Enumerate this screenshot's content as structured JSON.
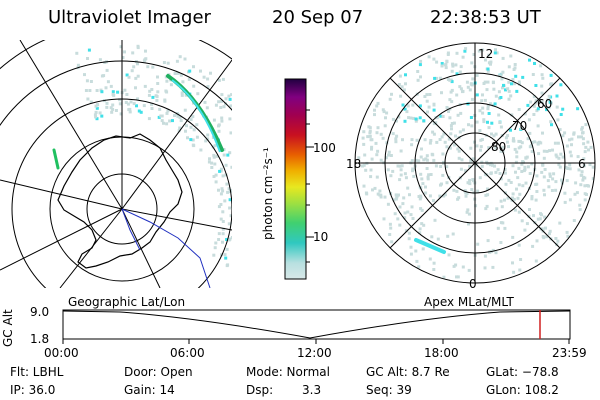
{
  "header": {
    "instrument": "Ultraviolet Imager",
    "date": "20 Sep 07",
    "time": "22:38:53 UT"
  },
  "colorbar": {
    "unit_label": "photon cm⁻²s⁻¹",
    "ticks": [
      "100",
      "10"
    ]
  },
  "polar_plot": {
    "mlat_labels": [
      "60",
      "70",
      "80"
    ],
    "mlt_labels": [
      "12",
      "18",
      "6",
      "0"
    ]
  },
  "timeline": {
    "left_title": "Geographic Lat/Lon",
    "right_title": "Apex MLat/MLT",
    "ylabel": "GC Alt",
    "y_ticks": [
      "9.0",
      "1.8"
    ],
    "x_ticks": [
      "00:00",
      "06:00",
      "12:00",
      "18:00",
      "23:59"
    ],
    "marker_time": "22:38"
  },
  "status": {
    "flt": "Flt: LBHL",
    "ip": "IP: 36.0",
    "door": "Door: Open",
    "gain": "Gain: 14",
    "mode": "Mode: Normal",
    "dsp_label": "Dsp:",
    "dsp_value": "3.3",
    "gc_alt": "GC Alt: 8.7 Re",
    "seq": "Seq: 39",
    "glat": "GLat: −78.8",
    "glon": "GLon: 108.2"
  },
  "colors": {
    "aurora_cyan": "#40e0e8",
    "aurora_green": "#20c060",
    "noise": "#c8dcdc",
    "track_marker": "#d02020"
  }
}
